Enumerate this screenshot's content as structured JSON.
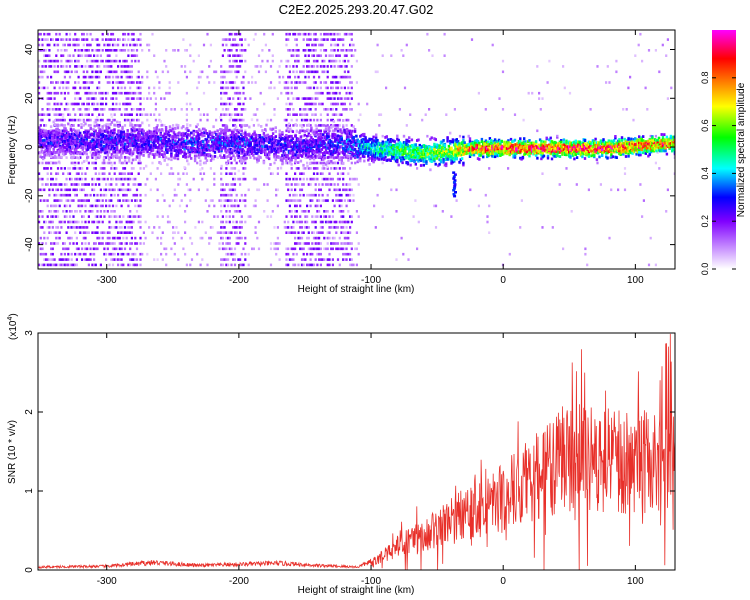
{
  "title": "C2E2.2025.293.20.47.G02",
  "chart_data": [
    {
      "type": "heatmap",
      "xlabel": "Height of straight line (km)",
      "ylabel": "Frequency (Hz)",
      "xlim": [
        -352,
        130
      ],
      "ylim": [
        -50,
        48
      ],
      "xticks": [
        -300,
        -200,
        -100,
        0,
        100
      ],
      "yticks": [
        -40,
        -20,
        0,
        20,
        40
      ],
      "colorbar": {
        "label": "Normalized spectral amplitude",
        "range": [
          0,
          1
        ],
        "ticks": [
          0.0,
          0.2,
          0.4,
          0.6,
          0.8
        ],
        "tick_labels": [
          "0.0",
          "0.2",
          "0.4",
          "0.6",
          "0.8"
        ],
        "colors": [
          "#ffffff",
          "#c080ff",
          "#8000ff",
          "#0000ff",
          "#00ffff",
          "#00ff00",
          "#ffff00",
          "#ff8000",
          "#ff0000",
          "#ff00ff"
        ]
      },
      "ridge": [
        {
          "x": -352,
          "y": 3,
          "amp": 0.25
        },
        {
          "x": -300,
          "y": 3,
          "amp": 0.28
        },
        {
          "x": -250,
          "y": 2,
          "amp": 0.3
        },
        {
          "x": -200,
          "y": 2,
          "amp": 0.3
        },
        {
          "x": -160,
          "y": 1,
          "amp": 0.28
        },
        {
          "x": -120,
          "y": 2,
          "amp": 0.32
        },
        {
          "x": -100,
          "y": 0,
          "amp": 0.45
        },
        {
          "x": -80,
          "y": -1,
          "amp": 0.55
        },
        {
          "x": -60,
          "y": -2,
          "amp": 0.6
        },
        {
          "x": -40,
          "y": -1,
          "amp": 0.65
        },
        {
          "x": -20,
          "y": 0,
          "amp": 0.85
        },
        {
          "x": 0,
          "y": 0,
          "amp": 0.9
        },
        {
          "x": 20,
          "y": 0,
          "amp": 0.9
        },
        {
          "x": 50,
          "y": 0,
          "amp": 0.9
        },
        {
          "x": 80,
          "y": 0,
          "amp": 0.88
        },
        {
          "x": 100,
          "y": 1,
          "amp": 0.85
        },
        {
          "x": 130,
          "y": 2,
          "amp": 0.8
        }
      ],
      "noisy_bands": [
        [
          -352,
          -275
        ],
        [
          -215,
          -195
        ],
        [
          -165,
          -115
        ]
      ],
      "tail": {
        "x": -38,
        "y_from": -10,
        "y_to": -20
      }
    },
    {
      "type": "line",
      "xlabel": "Height of straight line (km)",
      "ylabel": "SNR (10 * v/v)",
      "y_multiplier": "(x10",
      "y_multiplier_exp": "4",
      "y_multiplier_close": ")",
      "xlim": [
        -352,
        130
      ],
      "ylim": [
        0,
        3
      ],
      "xticks": [
        -300,
        -200,
        -100,
        0,
        100
      ],
      "yticks": [
        0,
        1,
        2,
        3
      ],
      "color": "#e8302a",
      "envelope": [
        {
          "x": -352,
          "y": 0.04
        },
        {
          "x": -300,
          "y": 0.05
        },
        {
          "x": -265,
          "y": 0.1
        },
        {
          "x": -230,
          "y": 0.06
        },
        {
          "x": -170,
          "y": 0.09
        },
        {
          "x": -140,
          "y": 0.06
        },
        {
          "x": -110,
          "y": 0.04
        },
        {
          "x": -95,
          "y": 0.15
        },
        {
          "x": -80,
          "y": 0.35
        },
        {
          "x": -60,
          "y": 0.5
        },
        {
          "x": -40,
          "y": 0.7
        },
        {
          "x": -25,
          "y": 0.85
        },
        {
          "x": -10,
          "y": 0.95
        },
        {
          "x": 10,
          "y": 1.15
        },
        {
          "x": 30,
          "y": 1.4
        },
        {
          "x": 45,
          "y": 1.6
        },
        {
          "x": 60,
          "y": 1.65
        },
        {
          "x": 80,
          "y": 1.6
        },
        {
          "x": 100,
          "y": 1.55
        },
        {
          "x": 120,
          "y": 1.6
        },
        {
          "x": 130,
          "y": 1.6
        }
      ]
    }
  ]
}
